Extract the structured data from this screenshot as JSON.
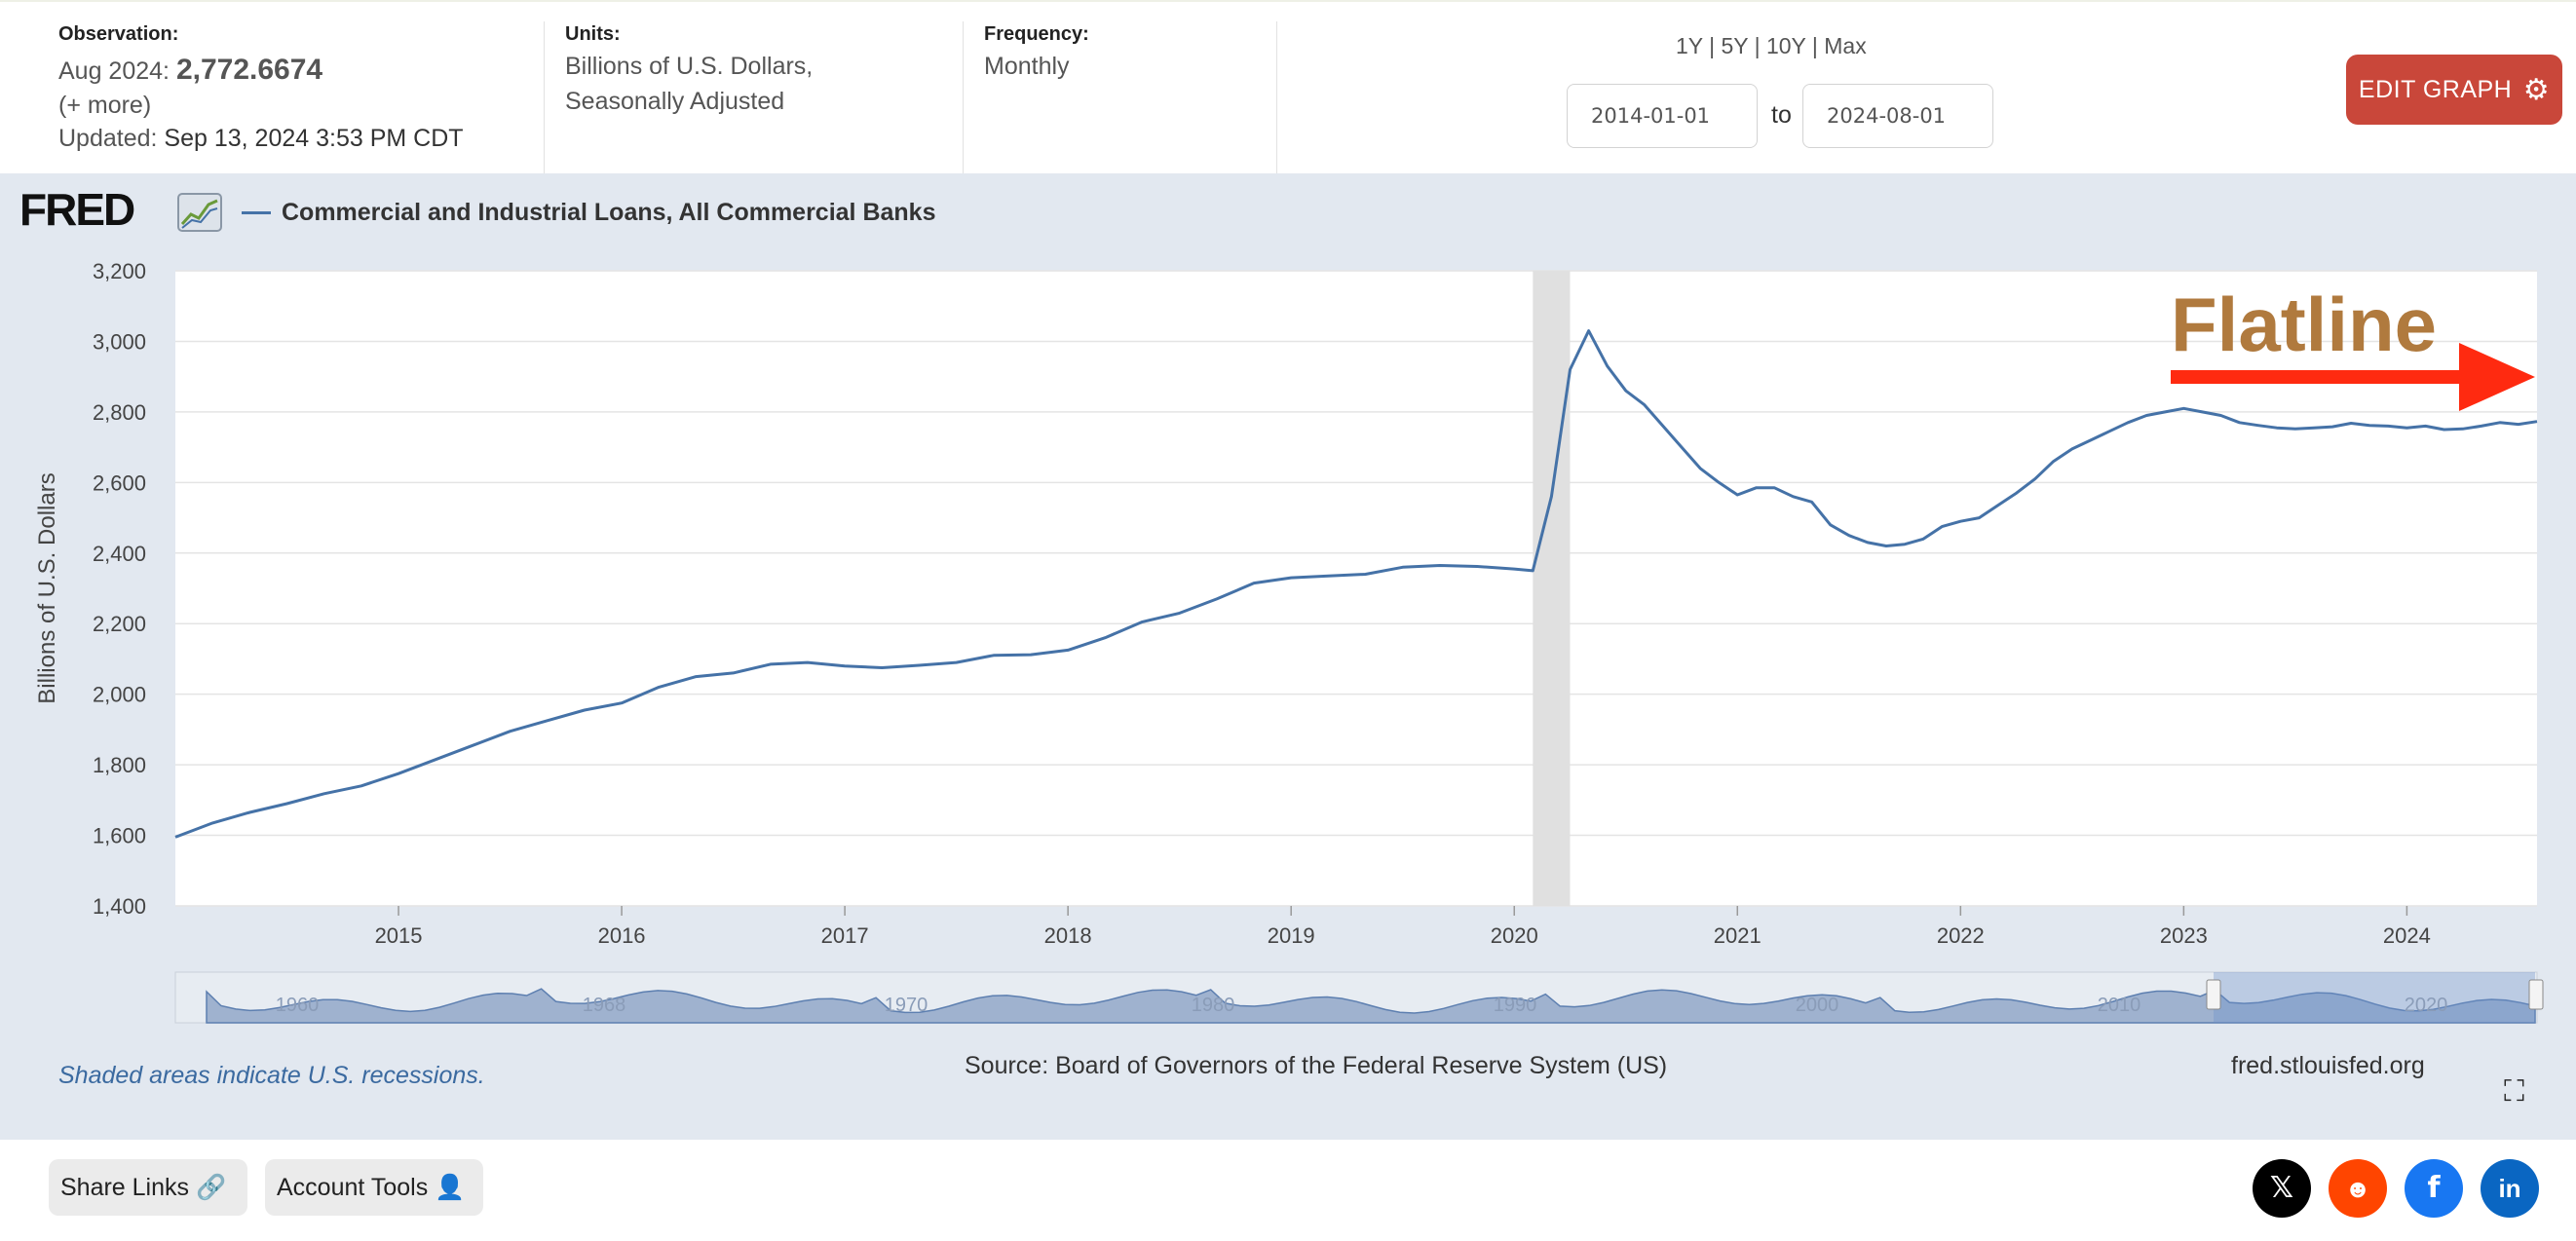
{
  "header": {
    "observation_label": "Observation:",
    "observation_date": "Aug 2024:",
    "observation_value": "2,772.6674",
    "more": "(+ more)",
    "updated_label": "Updated:",
    "updated_value": "Sep 13, 2024 3:53 PM CDT",
    "units_label": "Units:",
    "units_line1": "Billions of U.S. Dollars,",
    "units_line2": "Seasonally Adjusted",
    "frequency_label": "Frequency:",
    "frequency_value": "Monthly",
    "ranges": [
      "1Y",
      "5Y",
      "10Y",
      "Max"
    ],
    "start_date": "2014-01-01",
    "to_label": "to",
    "end_date": "2024-08-01",
    "edit_label": "EDIT GRAPH"
  },
  "graph": {
    "logo": "FRED",
    "recession_note": "Shaded areas indicate U.S. recessions.",
    "source": "Source: Board of Governors of the Federal Reserve System (US)",
    "site": "fred.stlouisfed.org",
    "annotation": "Flatline",
    "annotation_color": "#b07a3e",
    "arrow_color": "#ff2a10",
    "line_color": "#4572a7",
    "navigator_labels": [
      "1960",
      "1968",
      "1970",
      "1980",
      "1990",
      "2000",
      "2010",
      "2020"
    ]
  },
  "chart_data": {
    "type": "line",
    "title": "Commercial and Industrial Loans, All Commercial Banks",
    "ylabel": "Billions of U.S. Dollars",
    "xlabel": "",
    "ylim": [
      1400,
      3200
    ],
    "yticks": [
      "1,400",
      "1,600",
      "1,800",
      "2,000",
      "2,200",
      "2,400",
      "2,600",
      "2,800",
      "3,000",
      "3,200"
    ],
    "xticks": [
      "2015",
      "2016",
      "2017",
      "2018",
      "2019",
      "2020",
      "2021",
      "2022",
      "2023",
      "2024"
    ],
    "x_start": "2014-01",
    "x_end": "2024-08",
    "recession": [
      "2020-02",
      "2020-04"
    ],
    "series": [
      {
        "name": "Commercial and Industrial Loans, All Commercial Banks",
        "x": [
          "2014-01",
          "2014-03",
          "2014-05",
          "2014-07",
          "2014-09",
          "2014-11",
          "2015-01",
          "2015-03",
          "2015-05",
          "2015-07",
          "2015-09",
          "2015-11",
          "2016-01",
          "2016-03",
          "2016-05",
          "2016-07",
          "2016-09",
          "2016-11",
          "2017-01",
          "2017-03",
          "2017-05",
          "2017-07",
          "2017-09",
          "2017-11",
          "2018-01",
          "2018-03",
          "2018-05",
          "2018-07",
          "2018-09",
          "2018-11",
          "2019-01",
          "2019-03",
          "2019-05",
          "2019-07",
          "2019-09",
          "2019-11",
          "2020-01",
          "2020-02",
          "2020-03",
          "2020-04",
          "2020-05",
          "2020-06",
          "2020-07",
          "2020-08",
          "2020-09",
          "2020-10",
          "2020-11",
          "2020-12",
          "2021-01",
          "2021-02",
          "2021-03",
          "2021-04",
          "2021-05",
          "2021-06",
          "2021-07",
          "2021-08",
          "2021-09",
          "2021-10",
          "2021-11",
          "2021-12",
          "2022-01",
          "2022-02",
          "2022-03",
          "2022-04",
          "2022-05",
          "2022-06",
          "2022-07",
          "2022-08",
          "2022-09",
          "2022-10",
          "2022-11",
          "2022-12",
          "2023-01",
          "2023-02",
          "2023-03",
          "2023-04",
          "2023-05",
          "2023-06",
          "2023-07",
          "2023-08",
          "2023-09",
          "2023-10",
          "2023-11",
          "2023-12",
          "2024-01",
          "2024-02",
          "2024-03",
          "2024-04",
          "2024-05",
          "2024-06",
          "2024-07",
          "2024-08"
        ],
        "values": [
          1595,
          1635,
          1665,
          1690,
          1718,
          1740,
          1775,
          1815,
          1855,
          1895,
          1925,
          1955,
          1975,
          2020,
          2050,
          2060,
          2085,
          2090,
          2080,
          2075,
          2082,
          2090,
          2110,
          2112,
          2125,
          2160,
          2205,
          2230,
          2270,
          2315,
          2330,
          2335,
          2340,
          2360,
          2365,
          2362,
          2355,
          2350,
          2560,
          2920,
          3030,
          2930,
          2860,
          2820,
          2760,
          2700,
          2640,
          2600,
          2565,
          2585,
          2585,
          2560,
          2545,
          2480,
          2450,
          2430,
          2420,
          2425,
          2440,
          2475,
          2490,
          2500,
          2535,
          2570,
          2610,
          2660,
          2695,
          2720,
          2745,
          2770,
          2790,
          2800,
          2810,
          2800,
          2790,
          2770,
          2762,
          2755,
          2752,
          2755,
          2758,
          2768,
          2762,
          2760,
          2755,
          2760,
          2750,
          2752,
          2760,
          2770,
          2765,
          2773
        ]
      }
    ]
  },
  "footer": {
    "share_label": "Share Links",
    "account_label": "Account Tools",
    "social": [
      "X",
      "Reddit",
      "Facebook",
      "LinkedIn"
    ]
  }
}
